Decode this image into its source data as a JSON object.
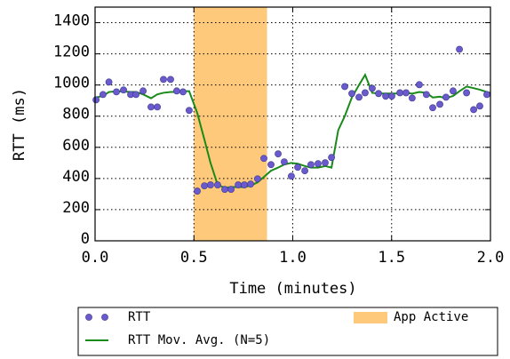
{
  "chart_data": {
    "type": "scatter",
    "xlabel": "Time (minutes)",
    "ylabel": "RTT (ms)",
    "xlim": [
      0,
      2.0
    ],
    "ylim": [
      0,
      1500
    ],
    "xticks": [
      {
        "value": 0,
        "label": "0.0"
      },
      0.5,
      {
        "value": 1,
        "label": "1.0"
      },
      1.5,
      {
        "value": 2,
        "label": "2.0"
      }
    ],
    "yticks": [
      0,
      200,
      400,
      600,
      800,
      1000,
      1200,
      1400
    ],
    "grid": true,
    "legend": "bottom",
    "spans": [
      {
        "name": "App Active",
        "x": [
          0.5,
          0.87
        ],
        "color": "#fec97a"
      }
    ],
    "series": [
      {
        "name": "RTT",
        "type": "scatter",
        "color": "#6a5acd",
        "x": [
          0.005,
          0.04,
          0.07,
          0.108,
          0.144,
          0.18,
          0.207,
          0.243,
          0.283,
          0.315,
          0.346,
          0.382,
          0.413,
          0.445,
          0.476,
          0.517,
          0.553,
          0.584,
          0.62,
          0.656,
          0.688,
          0.724,
          0.755,
          0.787,
          0.822,
          0.854,
          0.89,
          0.926,
          0.957,
          0.993,
          1.025,
          1.061,
          1.092,
          1.128,
          1.164,
          1.196,
          1.263,
          1.299,
          1.335,
          1.366,
          1.402,
          1.434,
          1.47,
          1.501,
          1.542,
          1.573,
          1.604,
          1.64,
          1.676,
          1.708,
          1.744,
          1.775,
          1.811,
          1.843,
          1.879,
          1.915,
          1.946,
          1.982
        ],
        "values": [
          905,
          939,
          1019,
          956,
          968,
          939,
          939,
          962,
          859,
          859,
          1036,
          1036,
          962,
          956,
          837,
          319,
          353,
          359,
          359,
          330,
          330,
          359,
          359,
          364,
          398,
          529,
          489,
          558,
          507,
          415,
          472,
          450,
          489,
          495,
          501,
          535,
          990,
          945,
          922,
          950,
          979,
          945,
          928,
          928,
          950,
          950,
          916,
          1002,
          939,
          854,
          876,
          922,
          962,
          1229,
          950,
          842,
          865,
          939
        ]
      },
      {
        "name": "RTT Mov. Avg. (N=5)",
        "type": "line",
        "color": "#1a8a1a",
        "x": [
          0.005,
          0.04,
          0.07,
          0.108,
          0.144,
          0.18,
          0.207,
          0.243,
          0.283,
          0.315,
          0.346,
          0.382,
          0.413,
          0.445,
          0.476,
          0.517,
          0.553,
          0.584,
          0.62,
          0.656,
          0.688,
          0.724,
          0.755,
          0.787,
          0.822,
          0.854,
          0.89,
          0.926,
          0.957,
          0.993,
          1.025,
          1.061,
          1.092,
          1.128,
          1.164,
          1.196,
          1.23,
          1.263,
          1.299,
          1.335,
          1.366,
          1.402,
          1.434,
          1.47,
          1.501,
          1.542,
          1.573,
          1.604,
          1.64,
          1.676,
          1.708,
          1.744,
          1.775,
          1.811,
          1.843,
          1.879,
          1.915,
          1.946,
          1.982,
          2.0
        ],
        "values": [
          920,
          930,
          955,
          960,
          958,
          955,
          955,
          940,
          915,
          940,
          950,
          955,
          955,
          960,
          960,
          820,
          650,
          500,
          360,
          340,
          345,
          345,
          345,
          355,
          375,
          410,
          450,
          470,
          490,
          500,
          495,
          480,
          470,
          470,
          480,
          470,
          710,
          800,
          920,
          1000,
          1065,
          950,
          945,
          945,
          945,
          945,
          950,
          945,
          955,
          950,
          920,
          925,
          915,
          930,
          960,
          990,
          980,
          970,
          955,
          950
        ]
      }
    ]
  }
}
